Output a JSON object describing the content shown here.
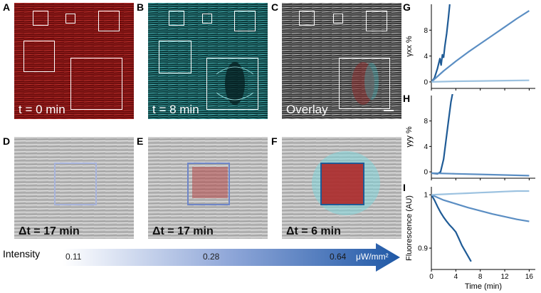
{
  "panels": {
    "A": {
      "letter": "A",
      "caption": "t = 0 min"
    },
    "B": {
      "letter": "B",
      "caption": "t = 8 min"
    },
    "C": {
      "letter": "C",
      "caption": "Overlay"
    },
    "D": {
      "letter": "D",
      "caption": "Δt = 17 min"
    },
    "E": {
      "letter": "E",
      "caption": "Δt = 17 min"
    },
    "F": {
      "letter": "F",
      "caption": "Δt = 6 min"
    },
    "G": {
      "letter": "G"
    },
    "H": {
      "letter": "H"
    },
    "I": {
      "letter": "I"
    }
  },
  "intensity_bar": {
    "label": "Intensity",
    "ticks": [
      "0.11",
      "0.28",
      "0.64"
    ],
    "unit": "μW/mm²"
  },
  "colors": {
    "dark_series": "#1f5b96",
    "mid_series": "#5b8ec3",
    "light_series": "#9cc2e0"
  },
  "chart_data": [
    {
      "type": "line",
      "panel": "G",
      "ylabel": "γxx %",
      "xlim": [
        0,
        17
      ],
      "ylim": [
        -1,
        12
      ],
      "yticks": [
        "0",
        "4",
        "8"
      ],
      "series": [
        {
          "color": "dark",
          "x": [
            0,
            0.5,
            1,
            1.4,
            1.6,
            1.8,
            2.0,
            2.2,
            2.5,
            2.8,
            3.0
          ],
          "y": [
            0,
            0.6,
            2.1,
            3.6,
            2.6,
            4.2,
            3.8,
            5.5,
            7.5,
            10,
            12
          ]
        },
        {
          "color": "mid",
          "x": [
            0,
            2,
            4,
            6,
            8,
            10,
            12,
            14,
            16
          ],
          "y": [
            0,
            1.7,
            3.2,
            4.6,
            5.9,
            7.2,
            8.5,
            9.8,
            11
          ]
        },
        {
          "color": "light",
          "x": [
            0,
            4,
            8,
            12,
            16
          ],
          "y": [
            0,
            0.1,
            0.15,
            0.2,
            0.25
          ]
        }
      ]
    },
    {
      "type": "line",
      "panel": "H",
      "ylabel": "γyy %",
      "xlim": [
        0,
        17
      ],
      "ylim": [
        -1,
        12
      ],
      "yticks": [
        "0",
        "4",
        "8"
      ],
      "series": [
        {
          "color": "dark",
          "x": [
            0,
            1,
            1.5,
            2.0,
            2.4,
            2.8,
            3.2,
            3.5
          ],
          "y": [
            -0.2,
            -0.3,
            0,
            2,
            5,
            8,
            11,
            12.5
          ]
        },
        {
          "color": "mid",
          "x": [
            0,
            4,
            8,
            12,
            16
          ],
          "y": [
            -0.2,
            -0.3,
            -0.4,
            -0.5,
            -0.6
          ]
        }
      ]
    },
    {
      "type": "line",
      "panel": "I",
      "ylabel": "Fluorescence (AU)",
      "xlabel": "Time (min)",
      "xlim": [
        0,
        17
      ],
      "ylim": [
        0.86,
        1.015
      ],
      "xticks": [
        "0",
        "4",
        "8",
        "12",
        "16"
      ],
      "yticks": [
        "0.9",
        "1"
      ],
      "series": [
        {
          "color": "dark",
          "x": [
            0,
            0.5,
            1,
            1.5,
            2,
            2.5,
            3,
            3.5,
            4,
            4.5,
            5,
            5.5,
            6,
            6.5
          ],
          "y": [
            1.0,
            0.99,
            0.978,
            0.967,
            0.958,
            0.95,
            0.943,
            0.937,
            0.93,
            0.918,
            0.905,
            0.895,
            0.885,
            0.875
          ]
        },
        {
          "color": "mid",
          "x": [
            0,
            2,
            4,
            6,
            8,
            10,
            12,
            14,
            16
          ],
          "y": [
            1.0,
            0.99,
            0.983,
            0.976,
            0.97,
            0.964,
            0.959,
            0.954,
            0.95
          ]
        },
        {
          "color": "light",
          "x": [
            0,
            2,
            4,
            6,
            8,
            10,
            12,
            14,
            16
          ],
          "y": [
            1.0,
            1.001,
            1.002,
            1.003,
            1.004,
            1.005,
            1.006,
            1.007,
            1.007
          ]
        }
      ]
    }
  ]
}
